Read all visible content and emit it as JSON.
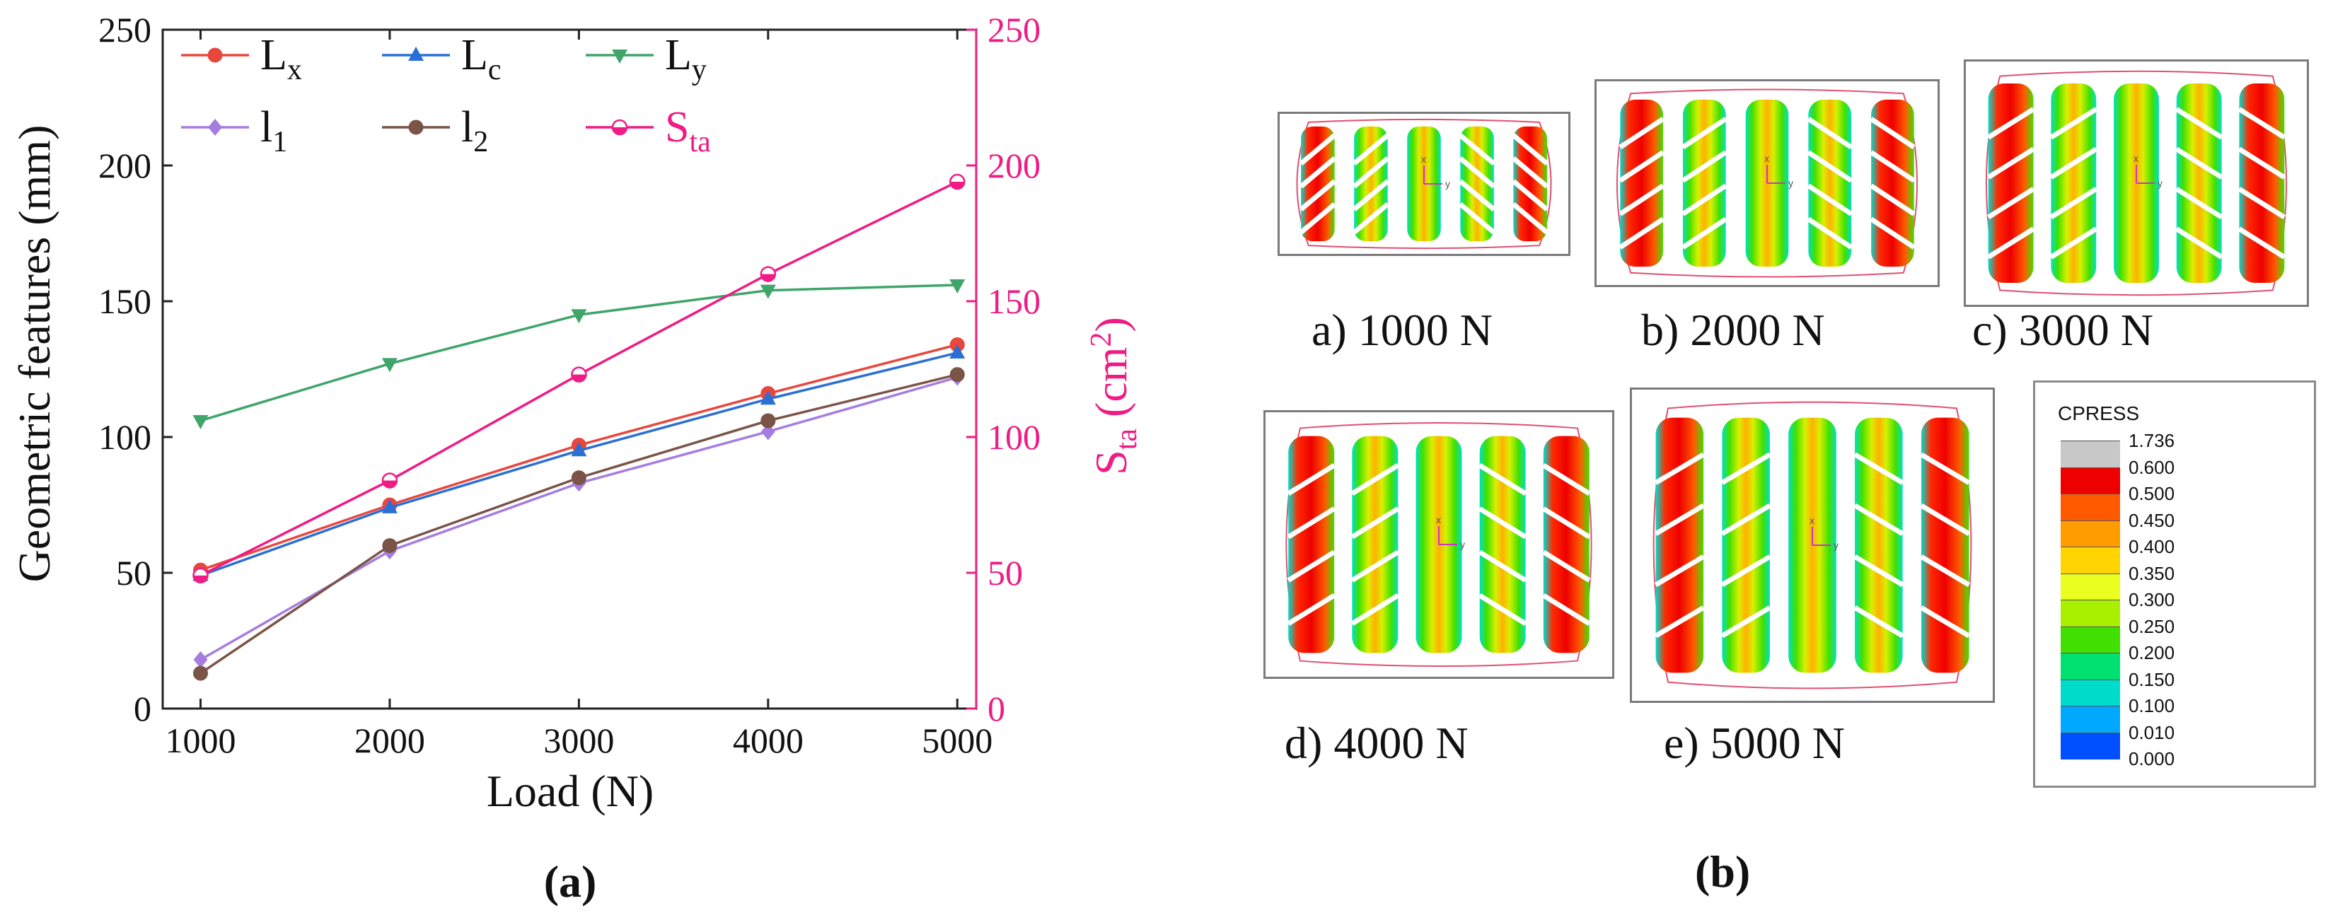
{
  "chart_data": {
    "type": "line",
    "panel_label": "(a)",
    "xlabel": "Load (N)",
    "ylabel_left": "Geometric features (mm)",
    "ylabel_right": "S",
    "ylabel_right_sub": "ta",
    "ylabel_right_unit": " (cm",
    "ylabel_right_sup": "2",
    "ylabel_right_close": ")",
    "x": [
      1000,
      2000,
      3000,
      4000,
      5000
    ],
    "xlim": [
      800,
      5100
    ],
    "ylim_left": [
      0,
      250
    ],
    "ylim_right": [
      0,
      250
    ],
    "x_ticks": [
      "1000",
      "2000",
      "3000",
      "4000",
      "5000"
    ],
    "y_ticks_left": [
      "0",
      "50",
      "100",
      "150",
      "200",
      "250"
    ],
    "y_ticks_right": [
      "0",
      "50",
      "100",
      "150",
      "200",
      "250"
    ],
    "grid": false,
    "legend_position": "top-left",
    "series": [
      {
        "name": "L",
        "sub": "x",
        "color": "#e8473e",
        "marker": "circle",
        "axis": "left",
        "values": [
          51,
          75,
          97,
          116,
          134
        ]
      },
      {
        "name": "L",
        "sub": "c",
        "color": "#2a6fd6",
        "marker": "triangle-up",
        "axis": "left",
        "values": [
          49,
          74,
          95,
          114,
          131
        ]
      },
      {
        "name": "L",
        "sub": "y",
        "color": "#3fa56a",
        "marker": "triangle-down",
        "axis": "left",
        "values": [
          106,
          127,
          145,
          154,
          156
        ]
      },
      {
        "name": "l",
        "sub": "1",
        "color": "#a57de0",
        "marker": "diamond",
        "axis": "left",
        "values": [
          18,
          58,
          83,
          102,
          122
        ]
      },
      {
        "name": "l",
        "sub": "2",
        "color": "#7a5446",
        "marker": "circle",
        "axis": "left",
        "values": [
          13,
          60,
          85,
          106,
          123
        ]
      },
      {
        "name": "S",
        "sub": "ta",
        "color": "#ee1c84",
        "marker": "circle-half",
        "axis": "right",
        "values": [
          49,
          84,
          123,
          160,
          194
        ]
      }
    ]
  },
  "panel_b": {
    "panel_label": "(b)",
    "footprints": [
      {
        "caption": "a) 1000 N"
      },
      {
        "caption": "b) 2000 N"
      },
      {
        "caption": "c) 3000 N"
      },
      {
        "caption": "d) 4000 N"
      },
      {
        "caption": "e) 5000 N"
      }
    ],
    "axis_marks": {
      "x": "x",
      "y": "y"
    },
    "colorbar": {
      "title": "CPRESS",
      "labels": [
        "1.736",
        "0.600",
        "0.500",
        "0.450",
        "0.400",
        "0.350",
        "0.300",
        "0.250",
        "0.200",
        "0.150",
        "0.100",
        "0.010",
        "0.000"
      ],
      "colors": [
        "#c8c8c8",
        "#ee0000",
        "#ff5a00",
        "#ff9c00",
        "#ffd400",
        "#e8ff20",
        "#a8f000",
        "#40e000",
        "#00e070",
        "#00dccc",
        "#00a8ff",
        "#0050ff",
        "#0000e0"
      ]
    }
  }
}
